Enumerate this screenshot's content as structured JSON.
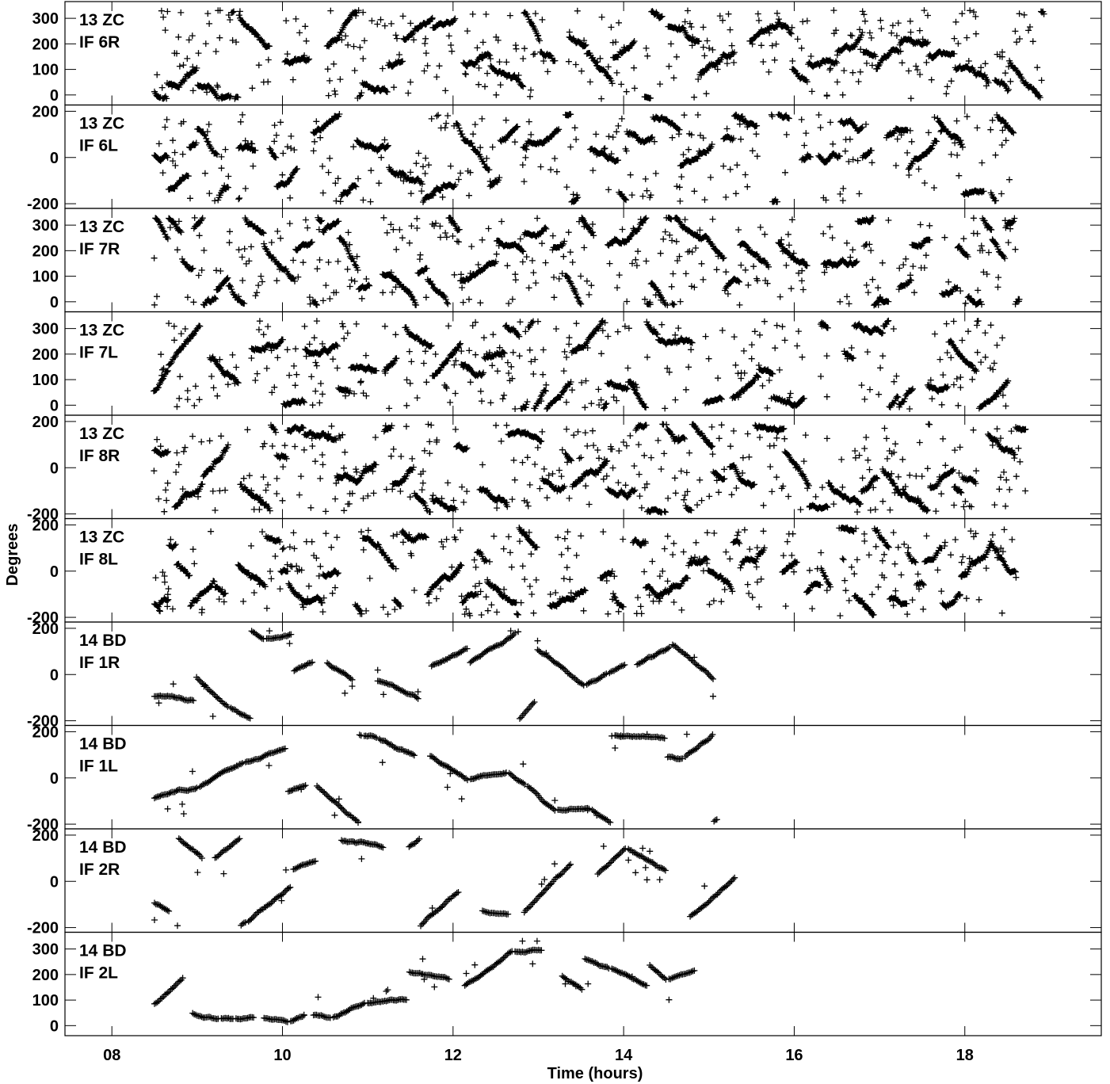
{
  "chart_data": {
    "type": "scatter",
    "title": "",
    "xlabel": "Time (hours)",
    "ylabel": "Degrees",
    "xlim": [
      7.45,
      19.6
    ],
    "x_ticks": [
      8,
      10,
      12,
      14,
      16,
      18
    ],
    "x_tick_labels": [
      "08",
      "10",
      "12",
      "14",
      "16",
      "18"
    ],
    "marker": "plus",
    "grid": false,
    "panels": [
      {
        "name": "13 ZC",
        "if_label": "IF 6R",
        "ylim": [
          -30,
          350
        ],
        "y_ticks": [
          0,
          100,
          200,
          300
        ],
        "x_range": [
          8.5,
          18.6
        ],
        "pattern": "dense",
        "seed": 11
      },
      {
        "name": "13 ZC",
        "if_label": "IF 6L",
        "ylim": [
          -210,
          210
        ],
        "y_ticks": [
          -200,
          0,
          200
        ],
        "x_range": [
          8.5,
          18.6
        ],
        "pattern": "dense",
        "seed": 23
      },
      {
        "name": "13 ZC",
        "if_label": "IF 7R",
        "ylim": [
          -30,
          350
        ],
        "y_ticks": [
          0,
          100,
          200,
          300
        ],
        "x_range": [
          8.5,
          18.6
        ],
        "pattern": "dense",
        "seed": 37
      },
      {
        "name": "13 ZC",
        "if_label": "IF 7L",
        "ylim": [
          -30,
          350
        ],
        "y_ticks": [
          0,
          100,
          200,
          300
        ],
        "x_range": [
          8.5,
          18.6
        ],
        "pattern": "dense",
        "seed": 41
      },
      {
        "name": "13 ZC",
        "if_label": "IF 8R",
        "ylim": [
          -210,
          210
        ],
        "y_ticks": [
          -200,
          0,
          200
        ],
        "x_range": [
          8.5,
          18.6
        ],
        "pattern": "dense",
        "seed": 53
      },
      {
        "name": "13 ZC",
        "if_label": "IF 8L",
        "ylim": [
          -210,
          210
        ],
        "y_ticks": [
          -200,
          0,
          200
        ],
        "x_range": [
          8.5,
          18.6
        ],
        "pattern": "dense",
        "seed": 67
      },
      {
        "name": "14 BD",
        "if_label": "IF 1R",
        "ylim": [
          -210,
          210
        ],
        "y_ticks": [
          -200,
          0,
          200
        ],
        "x_range": [
          8.5,
          14.95
        ],
        "pattern": "sparse",
        "seed": 71
      },
      {
        "name": "14 BD",
        "if_label": "IF 1L",
        "ylim": [
          -210,
          210
        ],
        "y_ticks": [
          -200,
          0,
          200
        ],
        "x_range": [
          8.5,
          14.95
        ],
        "pattern": "sparse",
        "seed": 83
      },
      {
        "name": "14 BD",
        "if_label": "IF 2R",
        "ylim": [
          -210,
          210
        ],
        "y_ticks": [
          -200,
          0,
          200
        ],
        "x_range": [
          8.5,
          14.95
        ],
        "pattern": "sparse",
        "seed": 97
      },
      {
        "name": "14 BD",
        "if_label": "IF 2L",
        "ylim": [
          -30,
          350
        ],
        "y_ticks": [
          0,
          100,
          200,
          300
        ],
        "x_range": [
          8.5,
          14.95
        ],
        "pattern": "sparse",
        "seed": 101
      }
    ]
  }
}
